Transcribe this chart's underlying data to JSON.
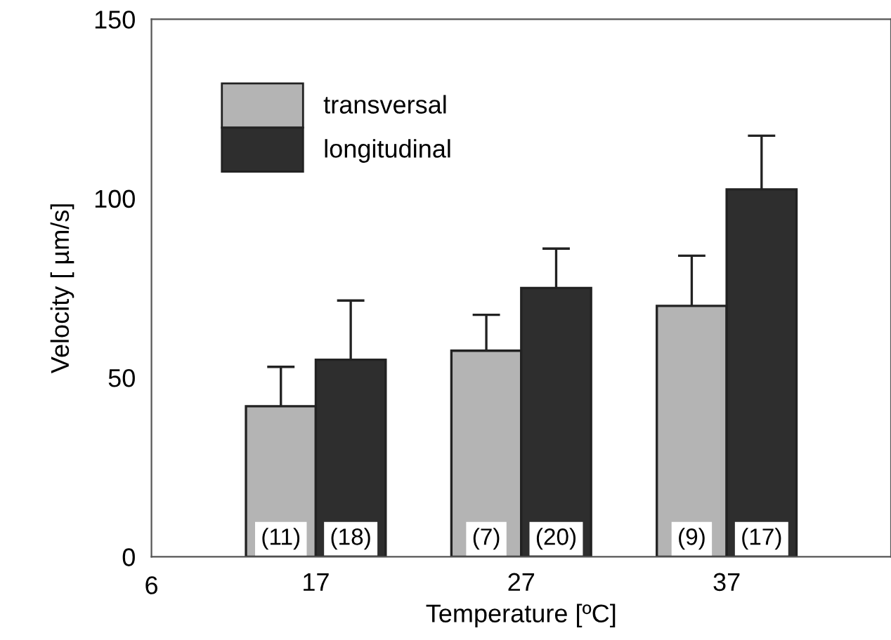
{
  "chart_data": {
    "type": "bar",
    "xlabel": "Temperature [ºC]",
    "ylabel": "Velocity [ µm/s]",
    "categories": [
      "17",
      "27",
      "37"
    ],
    "series": [
      {
        "name": "transversal",
        "color": "#b4b4b4",
        "values": [
          42,
          57.5,
          70
        ],
        "errors": [
          11,
          10,
          14
        ]
      },
      {
        "name": "longitudinal",
        "color": "#2e2e2e",
        "values": [
          55,
          75,
          102.5
        ],
        "errors": [
          16.5,
          11,
          15
        ]
      }
    ],
    "ylim": [
      0,
      150
    ],
    "yticks": [
      0,
      50,
      100,
      150
    ],
    "grid": false,
    "legend": "top left",
    "annotations": [
      "6",
      {
        "text": "(11)",
        "x": "17",
        "y": 0
      },
      {
        "text": "(18)",
        "x": "17",
        "y": 0
      },
      {
        "text": "(7)",
        "x": "27",
        "y": 0
      },
      {
        "text": "(20)",
        "x": "27",
        "y": 0
      },
      {
        "text": "(9)",
        "x": "37",
        "y": 0
      },
      {
        "text": "(17)",
        "x": "37",
        "y": 0
      }
    ]
  }
}
